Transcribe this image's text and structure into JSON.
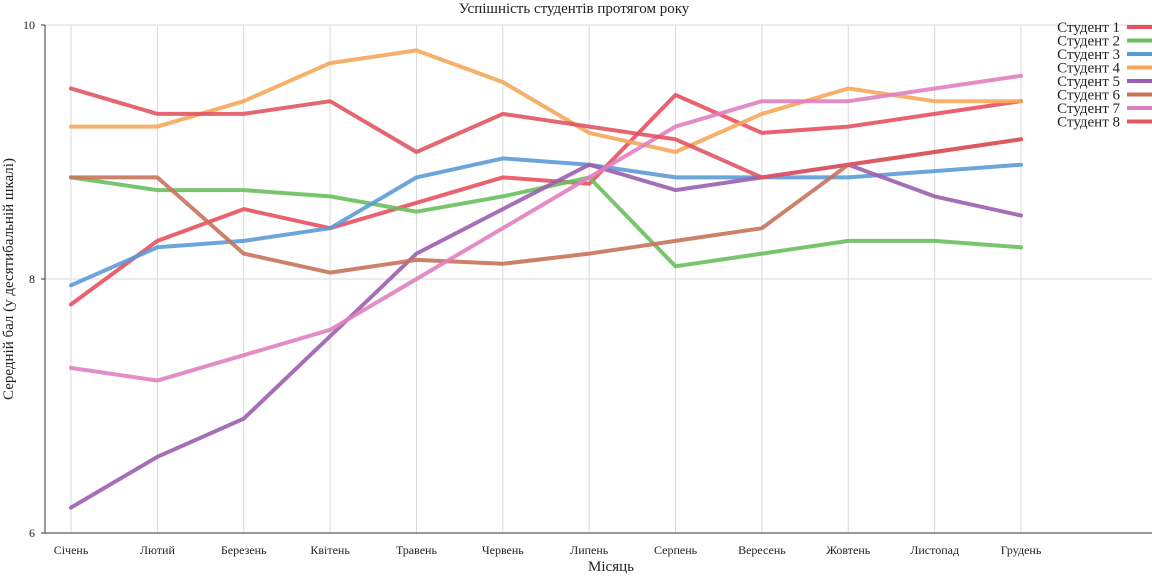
{
  "chart_data": {
    "type": "line",
    "title": "Успішність студентів протягом року",
    "xlabel": "Місяць",
    "ylabel": "Середній бал (у десятибальній шкалі)",
    "ylim": [
      6,
      10
    ],
    "yticks": [
      "6",
      "8",
      "10"
    ],
    "grid": true,
    "legend_position": "top-right",
    "categories": [
      "Січень",
      "Лютий",
      "Березень",
      "Квітень",
      "Травень",
      "Червень",
      "Липень",
      "Серпень",
      "Вересень",
      "Жовтень",
      "Листопад",
      "Грудень"
    ],
    "series": [
      {
        "name": "Студент 1",
        "color": "#e8515f",
        "values": [
          7.8,
          8.3,
          8.55,
          8.4,
          8.6,
          8.8,
          8.75,
          9.45,
          9.15,
          9.2,
          9.3,
          9.4
        ]
      },
      {
        "name": "Студент 2",
        "color": "#6abf5e",
        "values": [
          8.8,
          8.7,
          8.7,
          8.65,
          8.53,
          8.65,
          8.8,
          8.1,
          8.2,
          8.3,
          8.3,
          8.25
        ]
      },
      {
        "name": "Студент 3",
        "color": "#5b9bd5",
        "values": [
          7.95,
          8.25,
          8.3,
          8.4,
          8.8,
          8.95,
          8.9,
          8.8,
          8.8,
          8.8,
          8.85,
          8.9
        ]
      },
      {
        "name": "Студент 4",
        "color": "#f5a75a",
        "values": [
          9.2,
          9.2,
          9.4,
          9.7,
          9.8,
          9.55,
          9.15,
          9.0,
          9.3,
          9.5,
          9.4,
          9.4
        ]
      },
      {
        "name": "Студент 5",
        "color": "#9b5fb0",
        "values": [
          6.2,
          6.6,
          6.9,
          7.55,
          8.2,
          8.55,
          8.9,
          8.7,
          8.8,
          8.9,
          8.65,
          8.5
        ]
      },
      {
        "name": "Студент 6",
        "color": "#c8735a",
        "values": [
          8.8,
          8.8,
          8.2,
          8.05,
          8.15,
          8.12,
          8.2,
          8.3,
          8.4,
          8.9,
          9.0,
          9.1
        ]
      },
      {
        "name": "Студент 7",
        "color": "#e07fbf",
        "values": [
          7.3,
          7.2,
          7.4,
          7.6,
          8.0,
          8.4,
          8.8,
          9.2,
          9.4,
          9.4,
          9.5,
          9.6
        ]
      },
      {
        "name": "Студент 8",
        "color": "#e05560",
        "values": [
          9.5,
          9.3,
          9.3,
          9.4,
          9.0,
          9.3,
          9.2,
          9.1,
          8.8,
          8.9,
          9.0,
          9.1
        ]
      }
    ]
  }
}
